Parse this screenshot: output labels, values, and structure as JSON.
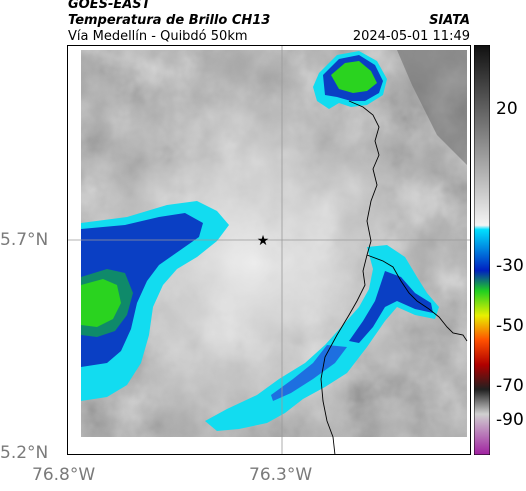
{
  "header": {
    "satellite": "GOES-EAST",
    "product": "Temperatura de Brillo CH13",
    "region": "Vía Medellín - Quibdó 50km",
    "agency": "SIATA",
    "datetime": "2024-05-01 11:49"
  },
  "axes": {
    "y_ticks": [
      {
        "label": "5.7°N",
        "value": 5.7
      },
      {
        "label": "5.2°N",
        "value": 5.2
      }
    ],
    "x_ticks": [
      {
        "label": "76.8°W",
        "value": -76.8
      },
      {
        "label": "76.3°W",
        "value": -76.3
      }
    ]
  },
  "colorbar": {
    "ticks": [
      {
        "label": "20",
        "value": 20
      },
      {
        "label": "-30",
        "value": -30
      },
      {
        "label": "-50",
        "value": -50
      },
      {
        "label": "-70",
        "value": -70
      },
      {
        "label": "-90",
        "value": -90
      }
    ]
  },
  "marker": {
    "icon": "star-icon"
  },
  "colors": {
    "cold_cloud_blue": "#0a3fc4",
    "cyan": "#12dcf0",
    "green": "#2ad31f",
    "border_line": "#000000",
    "grid_line": "#9a9a9a"
  }
}
